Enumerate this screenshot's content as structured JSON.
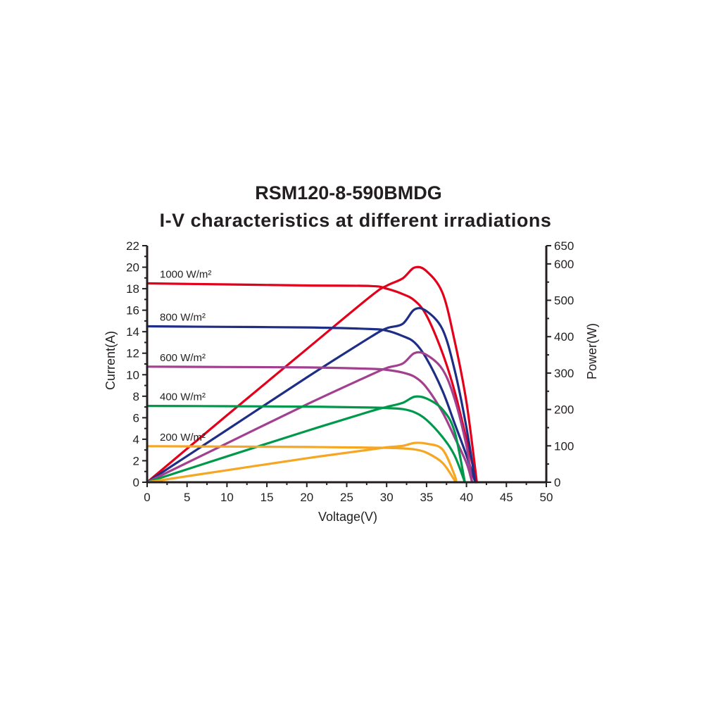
{
  "chart_data": {
    "type": "line",
    "title": "RSM120-8-590BMDG",
    "subtitle": "I-V characteristics at different irradiations",
    "xlabel": "Voltage(V)",
    "ylabel_left": "Current(A)",
    "ylabel_right": "Power(W)",
    "xlim": [
      0,
      50
    ],
    "ylim_left": [
      0,
      22
    ],
    "ylim_right": [
      0,
      650
    ],
    "x_ticks": [
      0,
      5,
      10,
      15,
      20,
      25,
      30,
      35,
      40,
      45,
      50
    ],
    "y_left_ticks": [
      0,
      2,
      4,
      6,
      8,
      10,
      12,
      14,
      16,
      18,
      20,
      22
    ],
    "y_right_ticks": [
      0,
      100,
      200,
      300,
      400,
      500,
      600,
      650
    ],
    "grid": false,
    "series": [
      {
        "name": "1000 W/m²",
        "color": "#e3001b",
        "iv": [
          [
            0,
            18.5
          ],
          [
            10,
            18.4
          ],
          [
            20,
            18.3
          ],
          [
            28,
            18.25
          ],
          [
            30,
            18.0
          ],
          [
            32,
            17.5
          ],
          [
            33.5,
            16.9
          ],
          [
            35,
            15.5
          ],
          [
            37,
            12.0
          ],
          [
            38.5,
            8.5
          ],
          [
            40,
            4.0
          ],
          [
            41.3,
            0
          ]
        ],
        "pv": [
          [
            0,
            0
          ],
          [
            10,
            184
          ],
          [
            20,
            366
          ],
          [
            28,
            511
          ],
          [
            30,
            540
          ],
          [
            32,
            560
          ],
          [
            33.5,
            590
          ],
          [
            35,
            580
          ],
          [
            37,
            520
          ],
          [
            38.5,
            390
          ],
          [
            40,
            220
          ],
          [
            41.3,
            0
          ]
        ]
      },
      {
        "name": "800 W/m²",
        "color": "#1e2d86",
        "iv": [
          [
            0,
            14.5
          ],
          [
            10,
            14.45
          ],
          [
            20,
            14.4
          ],
          [
            28,
            14.25
          ],
          [
            30,
            14.1
          ],
          [
            32,
            13.6
          ],
          [
            33.5,
            13.0
          ],
          [
            35,
            11.5
          ],
          [
            37,
            8.5
          ],
          [
            38.5,
            5.5
          ],
          [
            40,
            2.5
          ],
          [
            41.1,
            0
          ]
        ],
        "pv": [
          [
            0,
            0
          ],
          [
            10,
            144
          ],
          [
            20,
            288
          ],
          [
            28,
            399
          ],
          [
            30,
            423
          ],
          [
            32,
            435
          ],
          [
            33.5,
            475
          ],
          [
            35,
            470
          ],
          [
            37,
            420
          ],
          [
            38.5,
            310
          ],
          [
            40,
            150
          ],
          [
            41.1,
            0
          ]
        ]
      },
      {
        "name": "600 W/m²",
        "color": "#a2408f",
        "iv": [
          [
            0,
            10.75
          ],
          [
            10,
            10.72
          ],
          [
            20,
            10.68
          ],
          [
            28,
            10.55
          ],
          [
            30,
            10.45
          ],
          [
            32,
            10.2
          ],
          [
            33.5,
            9.8
          ],
          [
            35,
            8.8
          ],
          [
            37,
            6.5
          ],
          [
            38.5,
            4.2
          ],
          [
            40,
            1.8
          ],
          [
            40.7,
            0
          ]
        ],
        "pv": [
          [
            0,
            0
          ],
          [
            10,
            107
          ],
          [
            20,
            214
          ],
          [
            28,
            295
          ],
          [
            30,
            314
          ],
          [
            32,
            326
          ],
          [
            33.5,
            355
          ],
          [
            35,
            350
          ],
          [
            37,
            310
          ],
          [
            38.5,
            230
          ],
          [
            40,
            100
          ],
          [
            40.7,
            0
          ]
        ]
      },
      {
        "name": "400 W/m²",
        "color": "#00994c",
        "iv": [
          [
            0,
            7.1
          ],
          [
            10,
            7.07
          ],
          [
            20,
            7.03
          ],
          [
            28,
            6.95
          ],
          [
            30,
            6.9
          ],
          [
            32,
            6.8
          ],
          [
            33.5,
            6.5
          ],
          [
            35,
            5.8
          ],
          [
            37,
            4.2
          ],
          [
            38.5,
            2.5
          ],
          [
            39.8,
            0
          ]
        ],
        "pv": [
          [
            0,
            0
          ],
          [
            10,
            71
          ],
          [
            20,
            141
          ],
          [
            28,
            195
          ],
          [
            30,
            207
          ],
          [
            32,
            218
          ],
          [
            33.5,
            235
          ],
          [
            35,
            230
          ],
          [
            37,
            200
          ],
          [
            38.5,
            140
          ],
          [
            39.8,
            0
          ]
        ]
      },
      {
        "name": "200 W/m²",
        "color": "#f5a623",
        "iv": [
          [
            0,
            3.35
          ],
          [
            10,
            3.32
          ],
          [
            20,
            3.28
          ],
          [
            28,
            3.22
          ],
          [
            30,
            3.2
          ],
          [
            32,
            3.15
          ],
          [
            33.5,
            3.05
          ],
          [
            35,
            2.75
          ],
          [
            37,
            1.8
          ],
          [
            38.5,
            0.2
          ],
          [
            38.7,
            0
          ]
        ],
        "pv": [
          [
            0,
            0
          ],
          [
            10,
            33
          ],
          [
            20,
            66
          ],
          [
            28,
            90
          ],
          [
            30,
            96
          ],
          [
            32,
            100
          ],
          [
            33.5,
            108
          ],
          [
            35,
            106
          ],
          [
            37,
            90
          ],
          [
            38.5,
            20
          ],
          [
            38.7,
            0
          ]
        ]
      }
    ]
  }
}
